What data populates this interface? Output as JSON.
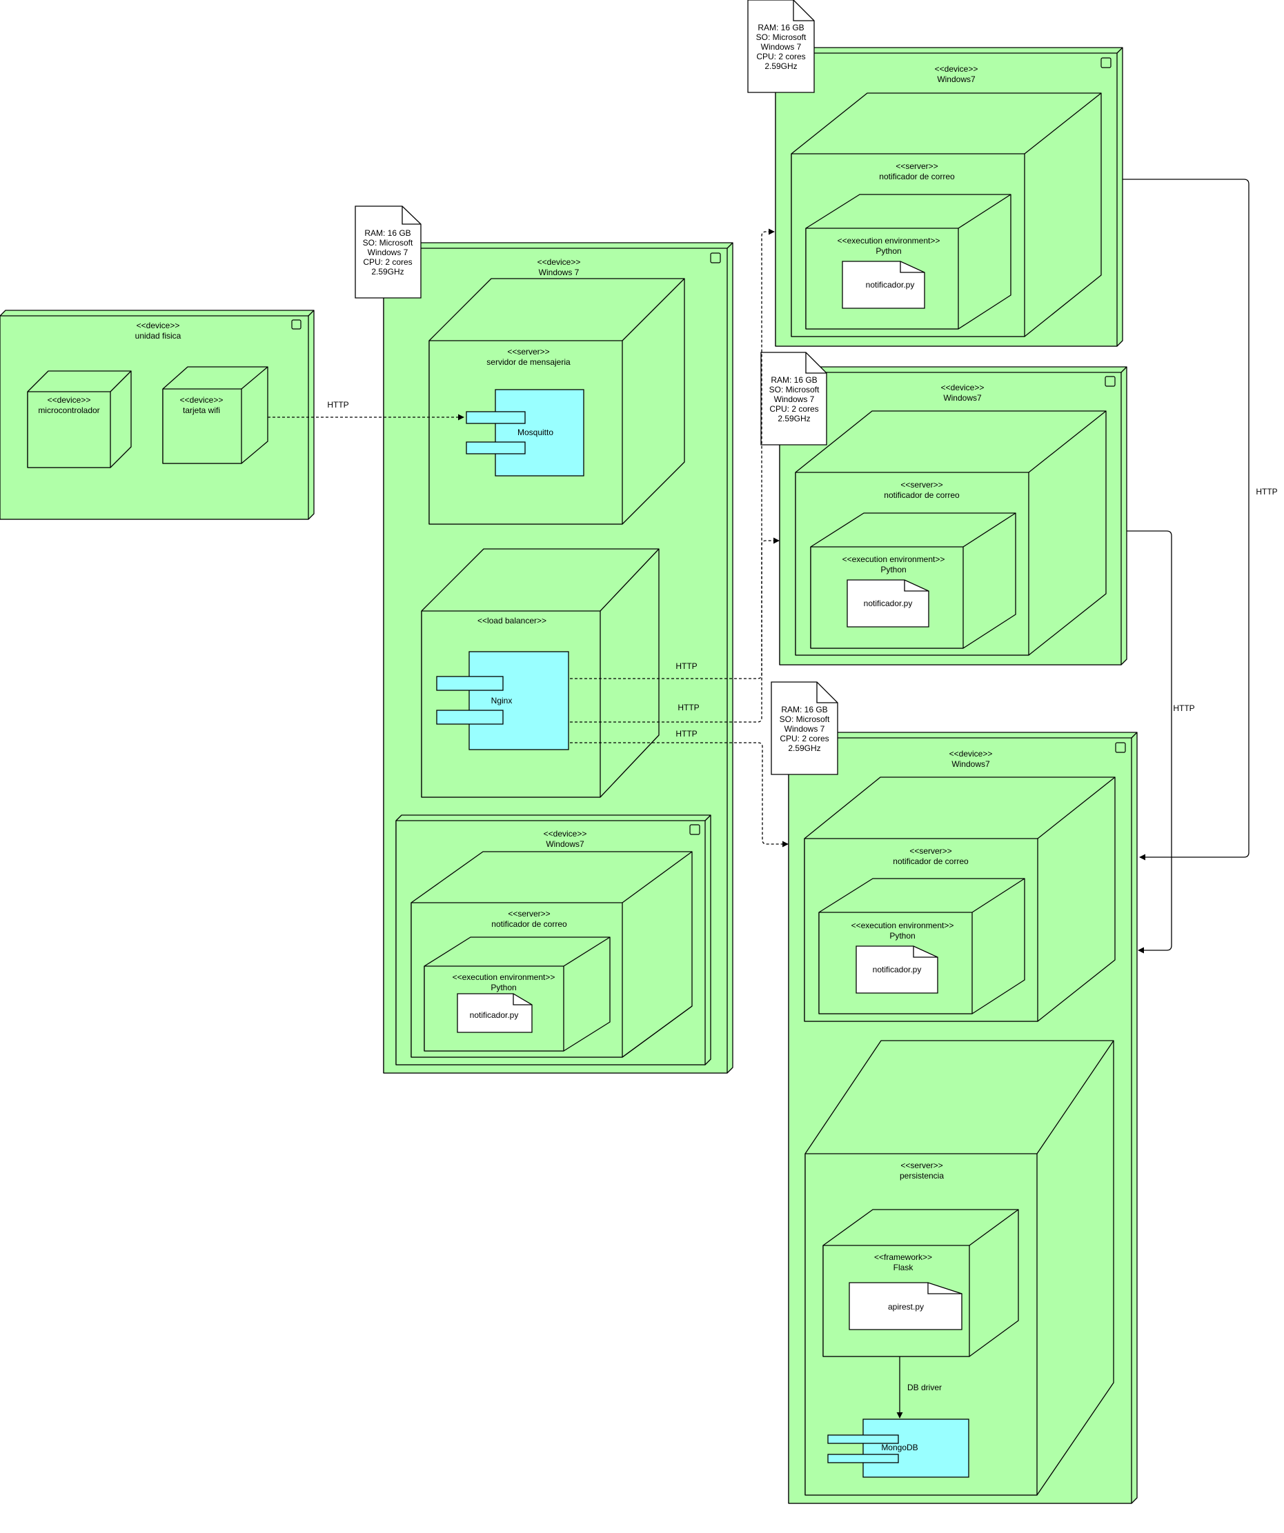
{
  "colors": {
    "node": "#b0ffa8",
    "component": "#99ffff",
    "note": "#ffffff",
    "stroke": "#000000"
  },
  "unidad": {
    "stereotype": "<<device>>",
    "name": "unidad fisica"
  },
  "micro": {
    "stereotype": "<<device>>",
    "name": "microcontrolador"
  },
  "wifi": {
    "stereotype": "<<device>>",
    "name": "tarjeta wifi"
  },
  "note1": {
    "lines": [
      "RAM: 16 GB",
      "SO: Microsoft",
      "Windows 7",
      "CPU: 2 cores",
      "2.59GHz"
    ]
  },
  "note2": {
    "lines": [
      "RAM: 16 GB",
      "SO: Microsoft",
      "Windows 7",
      "CPU: 2 cores",
      "2.59GHz"
    ]
  },
  "note3": {
    "lines": [
      "RAM: 16 GB",
      "SO: Microsoft",
      "Windows 7",
      "CPU: 2 cores",
      "2.59GHz"
    ]
  },
  "note4": {
    "lines": [
      "RAM: 16 GB",
      "SO: Microsoft",
      "Windows 7",
      "CPU: 2 cores",
      "2.59GHz"
    ]
  },
  "mainDevice": {
    "stereotype": "<<device>>",
    "name": "Windows 7"
  },
  "mensajeria": {
    "stereotype": "<<server>>",
    "name": "servidor de mensajeria"
  },
  "mosquitto": {
    "name": "Mosquitto"
  },
  "loadBalancer": {
    "stereotype": "<<load balancer>>"
  },
  "nginx": {
    "name": "Nginx"
  },
  "innerDevice": {
    "stereotype": "<<device>>",
    "name": "Windows7"
  },
  "notif1": {
    "server_stereo": "<<server>>",
    "server_name": "notificador de correo",
    "env_stereo": "<<execution environment>>",
    "env_name": "Python",
    "file": "notificador.py"
  },
  "rightDevice1": {
    "stereotype": "<<device>>",
    "name": "Windows7"
  },
  "notif2": {
    "server_stereo": "<<server>>",
    "server_name": "notificador de correo",
    "env_stereo": "<<execution environment>>",
    "env_name": "Python",
    "file": "notificador.py"
  },
  "rightDevice2": {
    "stereotype": "<<device>>",
    "name": "Windows7"
  },
  "notif3": {
    "server_stereo": "<<server>>",
    "server_name": "notificador de correo",
    "env_stereo": "<<execution environment>>",
    "env_name": "Python",
    "file": "notificador.py"
  },
  "rightDevice3": {
    "stereotype": "<<device>>",
    "name": "Windows7"
  },
  "notif4": {
    "server_stereo": "<<server>>",
    "server_name": "notificador de correo",
    "env_stereo": "<<execution environment>>",
    "env_name": "Python",
    "file": "notificador.py"
  },
  "persistencia": {
    "stereotype": "<<server>>",
    "name": "persistencia"
  },
  "flask": {
    "stereotype": "<<framework>>",
    "name": "Flask",
    "file": "apirest.py"
  },
  "mongodb": {
    "name": "MongoDB"
  },
  "edges": {
    "http_wifi": "HTTP",
    "http_nginx1": "HTTP",
    "http_nginx2": "HTTP",
    "http_nginx3": "HTTP",
    "http_right1": "HTTP",
    "http_right2": "HTTP",
    "db_driver": "DB driver"
  }
}
